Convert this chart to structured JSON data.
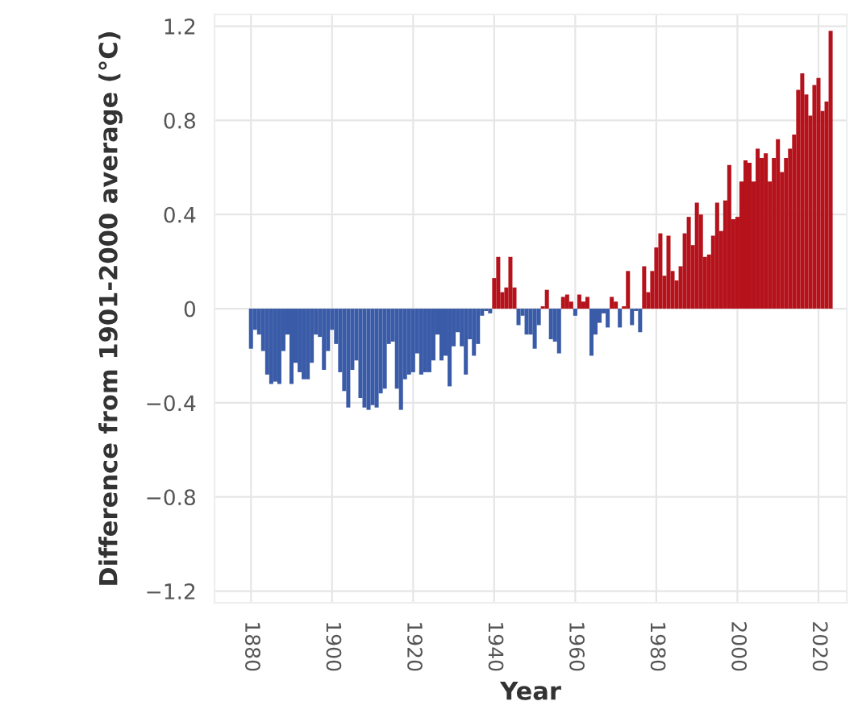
{
  "chart_data": {
    "type": "bar",
    "xlabel": "Year",
    "ylabel": "Difference from 1901-2000 average (°C)",
    "x": [
      1880,
      1881,
      1882,
      1883,
      1884,
      1885,
      1886,
      1887,
      1888,
      1889,
      1890,
      1891,
      1892,
      1893,
      1894,
      1895,
      1896,
      1897,
      1898,
      1899,
      1900,
      1901,
      1902,
      1903,
      1904,
      1905,
      1906,
      1907,
      1908,
      1909,
      1910,
      1911,
      1912,
      1913,
      1914,
      1915,
      1916,
      1917,
      1918,
      1919,
      1920,
      1921,
      1922,
      1923,
      1924,
      1925,
      1926,
      1927,
      1928,
      1929,
      1930,
      1931,
      1932,
      1933,
      1934,
      1935,
      1936,
      1937,
      1938,
      1939,
      1940,
      1941,
      1942,
      1943,
      1944,
      1945,
      1946,
      1947,
      1948,
      1949,
      1950,
      1951,
      1952,
      1953,
      1954,
      1955,
      1956,
      1957,
      1958,
      1959,
      1960,
      1961,
      1962,
      1963,
      1964,
      1965,
      1966,
      1967,
      1968,
      1969,
      1970,
      1971,
      1972,
      1973,
      1974,
      1975,
      1976,
      1977,
      1978,
      1979,
      1980,
      1981,
      1982,
      1983,
      1984,
      1985,
      1986,
      1987,
      1988,
      1989,
      1990,
      1991,
      1992,
      1993,
      1994,
      1995,
      1996,
      1997,
      1998,
      1999,
      2000,
      2001,
      2002,
      2003,
      2004,
      2005,
      2006,
      2007,
      2008,
      2009,
      2010,
      2011,
      2012,
      2013,
      2014,
      2015,
      2016,
      2017,
      2018,
      2019,
      2020,
      2021,
      2022,
      2023
    ],
    "values": [
      -0.17,
      -0.09,
      -0.11,
      -0.18,
      -0.28,
      -0.32,
      -0.31,
      -0.32,
      -0.18,
      -0.11,
      -0.32,
      -0.23,
      -0.27,
      -0.3,
      -0.3,
      -0.23,
      -0.11,
      -0.12,
      -0.26,
      -0.18,
      -0.09,
      -0.15,
      -0.27,
      -0.35,
      -0.42,
      -0.26,
      -0.22,
      -0.38,
      -0.42,
      -0.43,
      -0.41,
      -0.42,
      -0.36,
      -0.34,
      -0.15,
      -0.14,
      -0.34,
      -0.43,
      -0.3,
      -0.28,
      -0.27,
      -0.19,
      -0.28,
      -0.27,
      -0.27,
      -0.22,
      -0.11,
      -0.22,
      -0.2,
      -0.33,
      -0.16,
      -0.1,
      -0.16,
      -0.28,
      -0.13,
      -0.2,
      -0.15,
      -0.03,
      -0.01,
      -0.02,
      0.13,
      0.22,
      0.07,
      0.09,
      0.22,
      0.09,
      -0.07,
      -0.03,
      -0.11,
      -0.11,
      -0.17,
      -0.07,
      0.01,
      0.08,
      -0.13,
      -0.14,
      -0.19,
      0.05,
      0.06,
      0.03,
      -0.03,
      0.06,
      0.03,
      0.05,
      -0.2,
      -0.11,
      -0.06,
      -0.02,
      -0.08,
      0.05,
      0.03,
      -0.08,
      0.01,
      0.16,
      -0.07,
      -0.01,
      -0.1,
      0.18,
      0.07,
      0.16,
      0.26,
      0.32,
      0.14,
      0.31,
      0.16,
      0.12,
      0.18,
      0.32,
      0.39,
      0.27,
      0.45,
      0.4,
      0.22,
      0.23,
      0.31,
      0.45,
      0.33,
      0.46,
      0.61,
      0.38,
      0.39,
      0.54,
      0.63,
      0.62,
      0.54,
      0.68,
      0.64,
      0.66,
      0.54,
      0.64,
      0.72,
      0.58,
      0.64,
      0.68,
      0.74,
      0.93,
      1.0,
      0.91,
      0.82,
      0.95,
      0.98,
      0.84,
      0.88,
      1.18
    ],
    "colors": [
      "#3a5ba8",
      "#3a5ba8",
      "#3a5ba8",
      "#3a5ba8",
      "#3a5ba8",
      "#3a5ba8",
      "#3a5ba8",
      "#3a5ba8",
      "#3a5ba8",
      "#3a5ba8",
      "#3a5ba8",
      "#3a5ba8",
      "#3a5ba8",
      "#3a5ba8",
      "#3a5ba8",
      "#3a5ba8",
      "#3a5ba8",
      "#3a5ba8",
      "#3a5ba8",
      "#3a5ba8",
      "#3a5ba8",
      "#3a5ba8",
      "#3a5ba8",
      "#3a5ba8",
      "#3a5ba8",
      "#3a5ba8",
      "#3a5ba8",
      "#3a5ba8",
      "#3a5ba8",
      "#3a5ba8",
      "#3a5ba8",
      "#3a5ba8",
      "#3a5ba8",
      "#3a5ba8",
      "#3a5ba8",
      "#3a5ba8",
      "#3a5ba8",
      "#3a5ba8",
      "#3a5ba8",
      "#3a5ba8",
      "#3a5ba8",
      "#3a5ba8",
      "#3a5ba8",
      "#3a5ba8",
      "#3a5ba8",
      "#3a5ba8",
      "#3a5ba8",
      "#3a5ba8",
      "#3a5ba8",
      "#3a5ba8",
      "#3a5ba8",
      "#3a5ba8",
      "#3a5ba8",
      "#3a5ba8",
      "#3a5ba8",
      "#3a5ba8",
      "#3a5ba8",
      "#3a5ba8",
      "#3a5ba8",
      "#3a5ba8",
      "#b5121b",
      "#b5121b",
      "#b5121b",
      "#b5121b",
      "#b5121b",
      "#b5121b",
      "#3a5ba8",
      "#3a5ba8",
      "#3a5ba8",
      "#3a5ba8",
      "#3a5ba8",
      "#3a5ba8",
      "#b5121b",
      "#b5121b",
      "#3a5ba8",
      "#3a5ba8",
      "#3a5ba8",
      "#b5121b",
      "#b5121b",
      "#b5121b",
      "#3a5ba8",
      "#b5121b",
      "#b5121b",
      "#b5121b",
      "#3a5ba8",
      "#3a5ba8",
      "#3a5ba8",
      "#3a5ba8",
      "#3a5ba8",
      "#b5121b",
      "#b5121b",
      "#3a5ba8",
      "#b5121b",
      "#b5121b",
      "#3a5ba8",
      "#3a5ba8",
      "#3a5ba8",
      "#b5121b",
      "#b5121b",
      "#b5121b",
      "#b5121b",
      "#b5121b",
      "#b5121b",
      "#b5121b",
      "#b5121b",
      "#b5121b",
      "#b5121b",
      "#b5121b",
      "#b5121b",
      "#b5121b",
      "#b5121b",
      "#b5121b",
      "#b5121b",
      "#b5121b",
      "#b5121b",
      "#b5121b",
      "#b5121b",
      "#b5121b",
      "#b5121b",
      "#b5121b",
      "#b5121b",
      "#b5121b",
      "#b5121b",
      "#b5121b",
      "#b5121b",
      "#b5121b",
      "#b5121b",
      "#b5121b",
      "#b5121b",
      "#b5121b",
      "#b5121b",
      "#b5121b",
      "#b5121b",
      "#b5121b",
      "#b5121b",
      "#b5121b",
      "#b5121b",
      "#b5121b",
      "#b5121b",
      "#b5121b",
      "#b5121b",
      "#b5121b",
      "#b5121b",
      "#b5121b"
    ],
    "xlim": [
      1871,
      2027
    ],
    "ylim": [
      -1.25,
      1.25
    ],
    "xticks": [
      1880,
      1900,
      1920,
      1940,
      1960,
      1980,
      2000,
      2020
    ],
    "yticks": [
      {
        "value": -1.2,
        "label": "−1.2"
      },
      {
        "value": -0.8,
        "label": "−0.8"
      },
      {
        "value": -0.4,
        "label": "−0.4"
      },
      0,
      0.4,
      0.8,
      1.2
    ],
    "grid": true
  }
}
